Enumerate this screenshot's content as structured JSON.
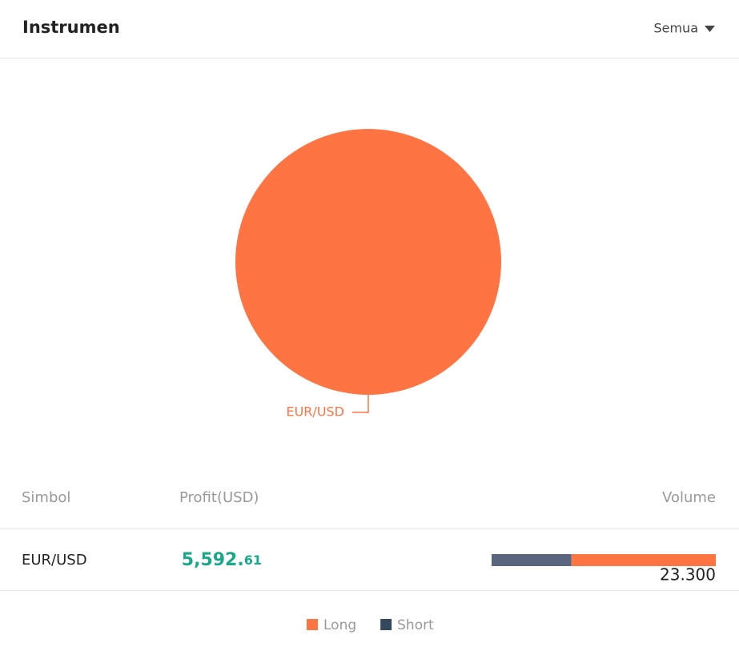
{
  "header": {
    "title": "Instrumen",
    "filter": "Semua"
  },
  "chart_data": {
    "type": "pie",
    "categories": [
      "EUR/USD"
    ],
    "values": [
      100
    ],
    "colors": [
      "#ff7443"
    ]
  },
  "table": {
    "columns": [
      "Simbol",
      "Profit(USD)",
      "Volume"
    ],
    "rows": [
      {
        "symbol": "EUR/USD",
        "profit_main": "5,592.",
        "profit_cents": "61",
        "volume": "23.300",
        "volume_parts": [
          {
            "name": "Short",
            "value": 8.3,
            "color": "#5a6580"
          },
          {
            "name": "Long",
            "value": 15.0,
            "color": "#ff7443"
          }
        ]
      }
    ]
  },
  "legend": [
    {
      "name": "Long",
      "color": "#ff7443"
    },
    {
      "name": "Short",
      "color": "#34495e"
    }
  ]
}
